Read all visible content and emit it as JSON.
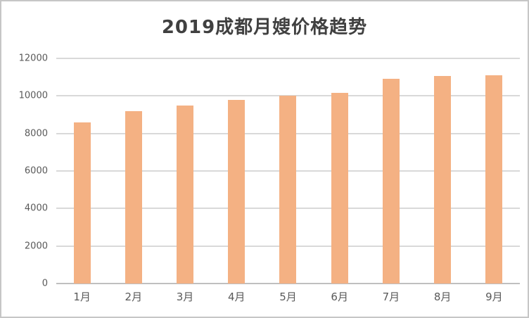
{
  "window": {
    "background": "#ffffff",
    "border_color": "#c6c6c6"
  },
  "chart_data": {
    "type": "bar",
    "title": "2019成都月嫂价格趋势",
    "categories": [
      "1月",
      "2月",
      "3月",
      "4月",
      "5月",
      "6月",
      "7月",
      "8月",
      "9月"
    ],
    "values": [
      8600,
      9200,
      9500,
      9800,
      10000,
      10150,
      10900,
      11050,
      11100
    ],
    "xlabel": "",
    "ylabel": "",
    "ylim": [
      0,
      12000
    ],
    "ytick_interval": 2000,
    "ytick_labels": [
      "12000",
      "10000",
      "8000",
      "6000",
      "4000",
      "2000",
      "0"
    ],
    "grid": true,
    "legend": "none",
    "colors": {
      "bar_fill": "#F4B183",
      "gridline": "#D9D9D9",
      "axis_line": "#BFBFBF",
      "tick_label": "#595959",
      "title": "#404040"
    }
  }
}
